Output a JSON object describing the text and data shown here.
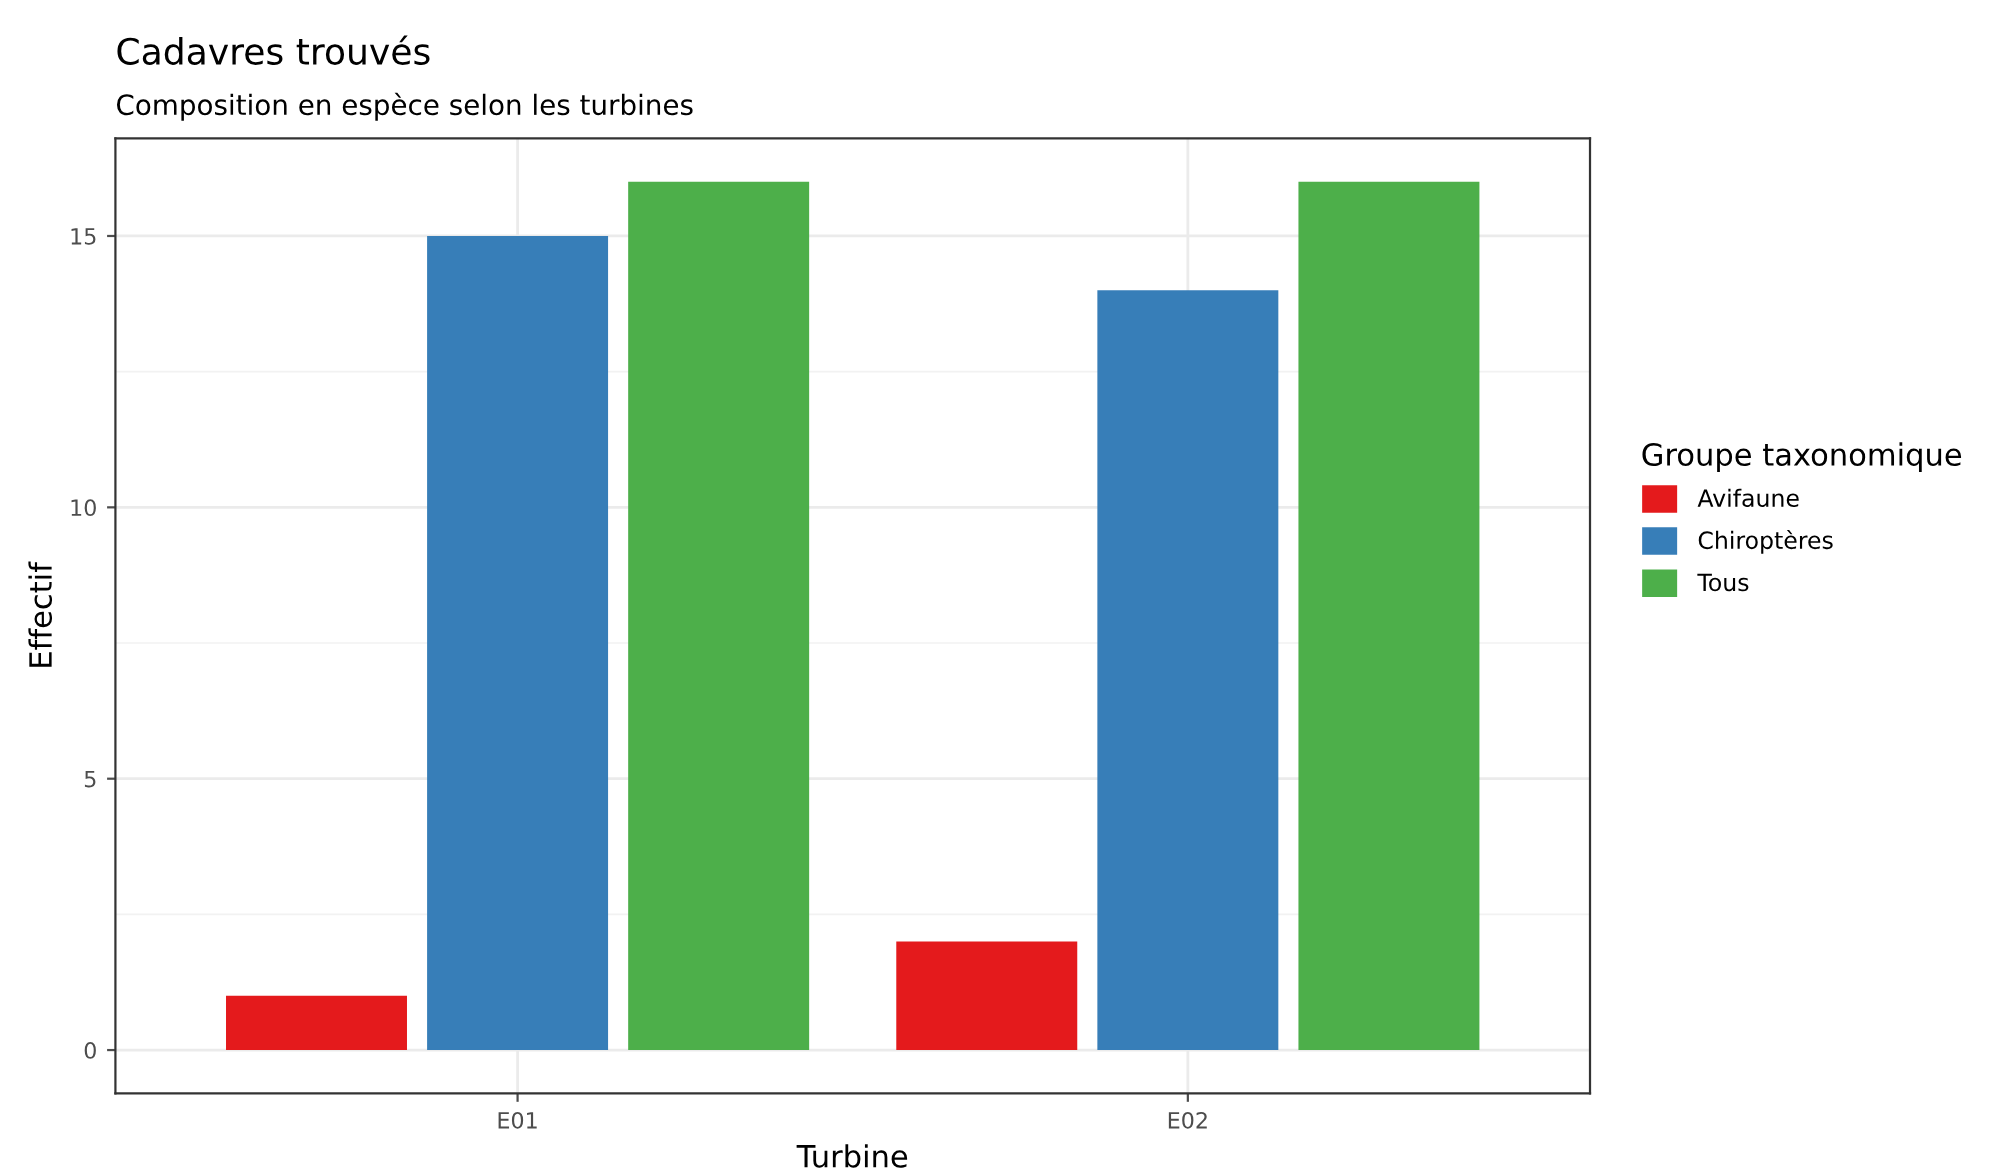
{
  "chart_data": {
    "type": "bar",
    "title": "Cadavres trouvés",
    "subtitle": "Composition en espèce selon les turbines",
    "xlabel": "Turbine",
    "ylabel": "Effectif",
    "legend_title": "Groupe taxonomique",
    "categories": [
      "E01",
      "E02"
    ],
    "series": [
      {
        "name": "Avifaune",
        "color": "#e41a1c",
        "values": [
          1,
          2
        ]
      },
      {
        "name": "Chiroptères",
        "color": "#377eb8",
        "values": [
          15,
          14
        ]
      },
      {
        "name": "Tous",
        "color": "#4daf4a",
        "values": [
          16,
          16
        ]
      }
    ],
    "ylim": [
      -0.8,
      16.8
    ],
    "yticks": [
      0,
      5,
      10,
      15
    ],
    "grid": true,
    "legend": "right"
  }
}
